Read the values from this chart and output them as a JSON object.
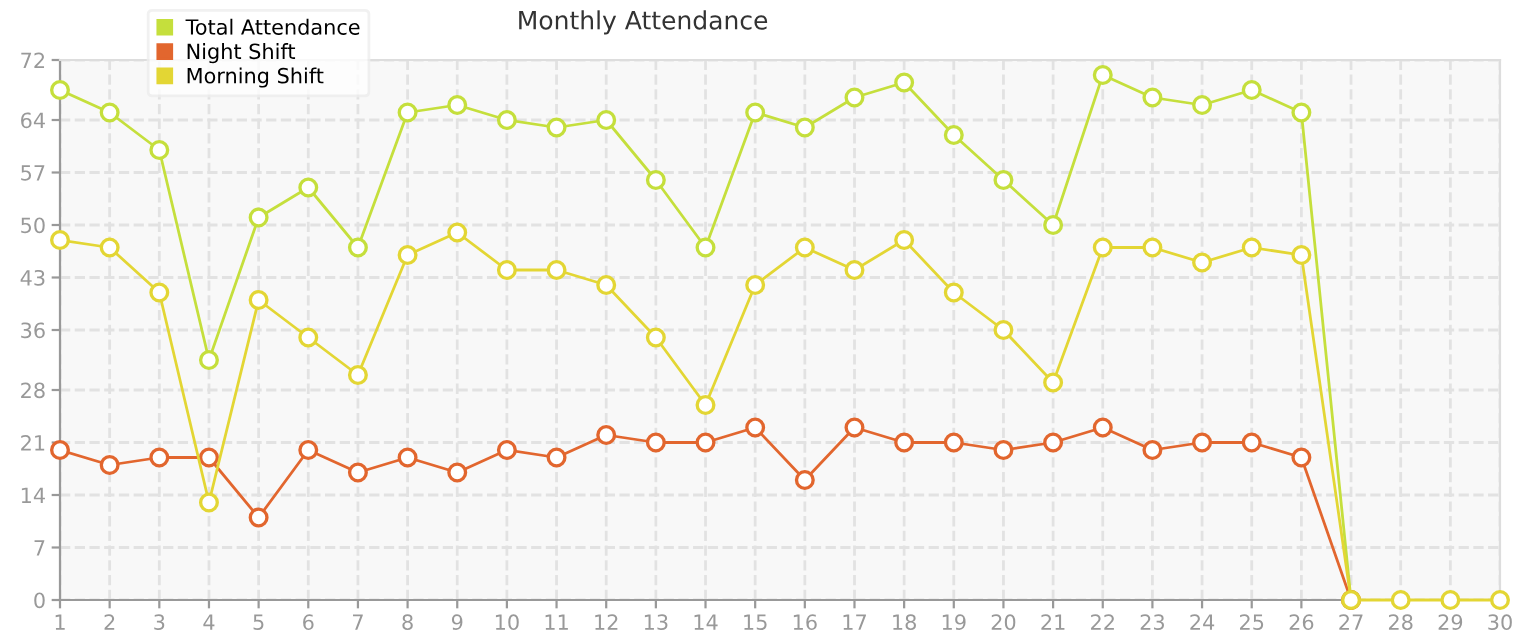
{
  "chart_data": {
    "type": "line",
    "title": "Monthly Attendance",
    "categories": [
      "1",
      "2",
      "3",
      "4",
      "5",
      "6",
      "7",
      "8",
      "9",
      "10",
      "11",
      "12",
      "13",
      "14",
      "15",
      "16",
      "17",
      "18",
      "19",
      "20",
      "21",
      "22",
      "23",
      "24",
      "25",
      "26",
      "27",
      "28",
      "29",
      "30"
    ],
    "series": [
      {
        "name": "Total Attendance",
        "color": "#c5df3c",
        "values": [
          68,
          65,
          60,
          32,
          51,
          55,
          47,
          65,
          66,
          64,
          63,
          64,
          56,
          47,
          65,
          63,
          67,
          69,
          62,
          56,
          50,
          70,
          67,
          66,
          68,
          65,
          0,
          null,
          null,
          null
        ]
      },
      {
        "name": "Night Shift",
        "color": "#e2662e",
        "values": [
          20,
          18,
          19,
          19,
          11,
          20,
          17,
          19,
          17,
          20,
          19,
          22,
          21,
          21,
          23,
          16,
          23,
          21,
          21,
          20,
          21,
          23,
          20,
          21,
          21,
          19,
          0,
          null,
          null,
          null
        ]
      },
      {
        "name": "Morning Shift",
        "color": "#e3d634",
        "values": [
          48,
          47,
          41,
          13,
          40,
          35,
          30,
          46,
          49,
          44,
          44,
          42,
          35,
          26,
          42,
          47,
          44,
          48,
          41,
          36,
          29,
          47,
          47,
          45,
          47,
          46,
          0,
          0,
          0,
          0
        ]
      }
    ],
    "ylim": [
      0,
      72
    ],
    "yticks": [
      0,
      7,
      14,
      21,
      28,
      36,
      43,
      50,
      57,
      64,
      72
    ],
    "grid": true,
    "legend": "top left",
    "marker": "circle",
    "line_style": "solid"
  }
}
